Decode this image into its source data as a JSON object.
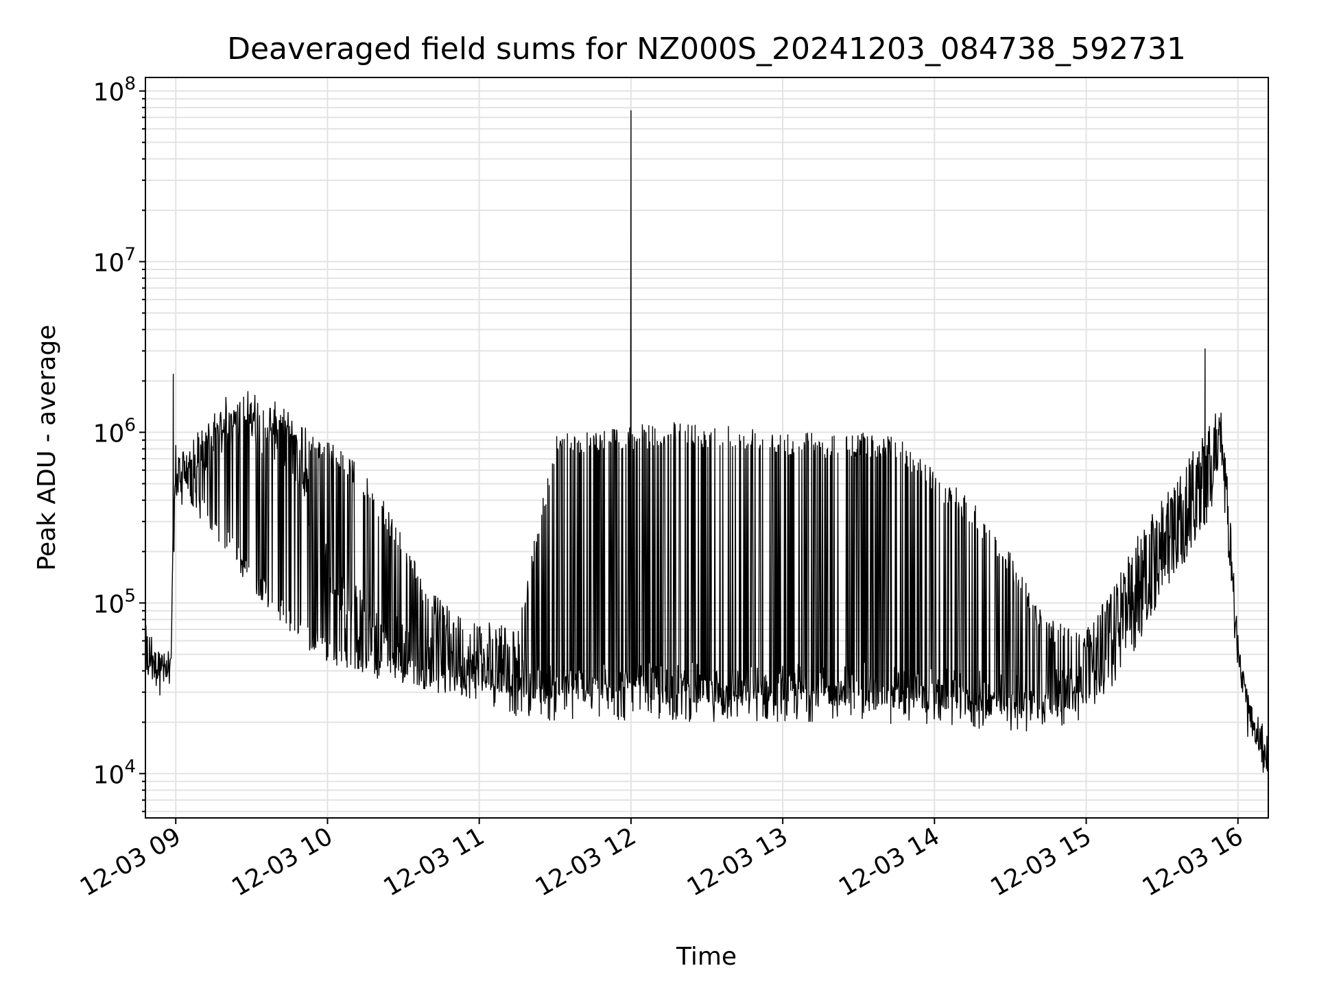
{
  "chart_data": {
    "type": "line",
    "title": "Deaveraged field sums for NZ000S_20241203_084738_592731",
    "xlabel": "Time",
    "ylabel": "Peak ADU - average",
    "y_scale": "log",
    "ylim": [
      5500,
      120000000
    ],
    "xlim": [
      "2024-12-03 08:48",
      "2024-12-03 16:12"
    ],
    "grid": true,
    "legend": "none",
    "line_color": "#000000",
    "grid_color": "#e3e3e3",
    "x_ticks": [
      {
        "t": "2024-12-03 09:00",
        "label": "12-03 09"
      },
      {
        "t": "2024-12-03 10:00",
        "label": "12-03 10"
      },
      {
        "t": "2024-12-03 11:00",
        "label": "12-03 11"
      },
      {
        "t": "2024-12-03 12:00",
        "label": "12-03 12"
      },
      {
        "t": "2024-12-03 13:00",
        "label": "12-03 13"
      },
      {
        "t": "2024-12-03 14:00",
        "label": "12-03 14"
      },
      {
        "t": "2024-12-03 15:00",
        "label": "12-03 15"
      },
      {
        "t": "2024-12-03 16:00",
        "label": "12-03 16"
      }
    ],
    "y_ticks": [
      {
        "value": 10000,
        "base": "10",
        "exp": "4"
      },
      {
        "value": 100000,
        "base": "10",
        "exp": "5"
      },
      {
        "value": 1000000,
        "base": "10",
        "exp": "6"
      },
      {
        "value": 10000000,
        "base": "10",
        "exp": "7"
      },
      {
        "value": 100000000,
        "base": "10",
        "exp": "8"
      }
    ],
    "series": [
      {
        "x": [
          "2024-12-03 08:48",
          "2024-12-03 08:52",
          "2024-12-03 08:56",
          "2024-12-03 08:58",
          "2024-12-03 08:59",
          "2024-12-03 09:00",
          "2024-12-03 09:05",
          "2024-12-03 09:10",
          "2024-12-03 09:15",
          "2024-12-03 09:20",
          "2024-12-03 09:25",
          "2024-12-03 09:30",
          "2024-12-03 09:35",
          "2024-12-03 09:40",
          "2024-12-03 09:45",
          "2024-12-03 09:50",
          "2024-12-03 09:55",
          "2024-12-03 10:00",
          "2024-12-03 10:10",
          "2024-12-03 10:20",
          "2024-12-03 10:30",
          "2024-12-03 10:40",
          "2024-12-03 10:50",
          "2024-12-03 11:00",
          "2024-12-03 11:15",
          "2024-12-03 11:30",
          "2024-12-03 11:45",
          "2024-12-03 12:00",
          "2024-12-03 12:15",
          "2024-12-03 12:30",
          "2024-12-03 12:45",
          "2024-12-03 13:00",
          "2024-12-03 13:15",
          "2024-12-03 13:30",
          "2024-12-03 13:45",
          "2024-12-03 14:00",
          "2024-12-03 14:15",
          "2024-12-03 14:30",
          "2024-12-03 14:45",
          "2024-12-03 15:00",
          "2024-12-03 15:10",
          "2024-12-03 15:20",
          "2024-12-03 15:30",
          "2024-12-03 15:40",
          "2024-12-03 15:45",
          "2024-12-03 15:50",
          "2024-12-03 15:53",
          "2024-12-03 15:55",
          "2024-12-03 16:00",
          "2024-12-03 16:05",
          "2024-12-03 16:12"
        ],
        "low": [
          40000,
          38000,
          36000,
          35000,
          150000,
          400000,
          350000,
          300000,
          250000,
          200000,
          150000,
          120000,
          100000,
          80000,
          65000,
          55000,
          50000,
          45000,
          38000,
          35000,
          33000,
          32000,
          32000,
          30000,
          28000,
          27000,
          26000,
          26000,
          26000,
          25000,
          25000,
          25000,
          25000,
          25000,
          24000,
          24000,
          22000,
          21000,
          22000,
          24000,
          30000,
          55000,
          110000,
          180000,
          220000,
          350000,
          800000,
          300000,
          40000,
          18000,
          10000
        ],
        "high": [
          55000,
          55000,
          50000,
          45000,
          300000,
          800000,
          800000,
          900000,
          1100000,
          1300000,
          1500000,
          1500000,
          1400000,
          1300000,
          1200000,
          1100000,
          1000000,
          900000,
          700000,
          450000,
          250000,
          120000,
          90000,
          80000,
          70000,
          1000000,
          1050000,
          1100000,
          1150000,
          1150000,
          1100000,
          1050000,
          1000000,
          1000000,
          1000000,
          600000,
          400000,
          200000,
          80000,
          70000,
          120000,
          250000,
          400000,
          700000,
          900000,
          1200000,
          1300000,
          900000,
          60000,
          25000,
          13000
        ],
        "mid": [
          50000,
          45000,
          40000,
          38000,
          200000,
          600000,
          600000,
          700000,
          900000,
          1100000,
          1200000,
          1200000,
          1100000,
          1000000,
          900000,
          600000,
          300000,
          150000,
          90000,
          70000,
          55000,
          45000,
          42000,
          40000,
          32000,
          30000,
          30000,
          30000,
          30000,
          30000,
          30000,
          30000,
          30000,
          30000,
          29000,
          28000,
          27000,
          26000,
          27000,
          30000,
          60000,
          120000,
          200000,
          300000,
          500000,
          800000,
          1000000,
          600000,
          45000,
          20000,
          11000
        ]
      }
    ],
    "spikes": [
      {
        "t": "2024-12-03 08:59",
        "value": 2200000
      },
      {
        "t": "2024-12-03 12:00",
        "value": 77000000
      },
      {
        "t": "2024-12-03 15:47",
        "value": 3100000
      }
    ]
  }
}
